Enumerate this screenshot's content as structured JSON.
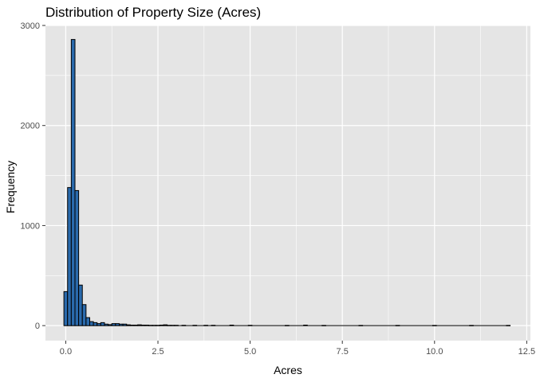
{
  "chart_data": {
    "type": "bar",
    "subtype": "histogram",
    "title": "Distribution of Property Size (Acres)",
    "xlabel": "Acres",
    "ylabel": "Frequency",
    "xlim": [
      -0.55,
      12.6
    ],
    "ylim": [
      -150,
      3000
    ],
    "x_ticks": [
      0,
      2.5,
      5,
      7.5,
      10,
      12.5
    ],
    "x_tick_labels": [
      "0.0",
      "2.5",
      "5.0",
      "7.5",
      "10.0",
      "12.5"
    ],
    "y_ticks": [
      0,
      1000,
      2000,
      3000
    ],
    "y_tick_labels": [
      "0",
      "1000",
      "2000",
      "3000"
    ],
    "bin_width": 0.1,
    "bin_centers": [
      0.0,
      0.1,
      0.2,
      0.3,
      0.4,
      0.5,
      0.6,
      0.7,
      0.8,
      0.9,
      1.0,
      1.1,
      1.2,
      1.3,
      1.4,
      1.5,
      1.6,
      1.7,
      1.8,
      1.9,
      2.0,
      2.1,
      2.2,
      2.3,
      2.4,
      2.5,
      2.6,
      2.7,
      2.8,
      2.9,
      3.0,
      3.2,
      3.5,
      3.8,
      4.0,
      4.5,
      5.0,
      6.0,
      6.5,
      7.0,
      8.0,
      9.0,
      10.0,
      11.0,
      12.0
    ],
    "frequencies": [
      340,
      1380,
      2860,
      1350,
      405,
      210,
      80,
      40,
      30,
      20,
      30,
      15,
      10,
      20,
      20,
      15,
      15,
      8,
      5,
      5,
      8,
      5,
      5,
      3,
      3,
      3,
      5,
      8,
      3,
      3,
      3,
      3,
      3,
      3,
      3,
      5,
      3,
      2,
      5,
      2,
      2,
      2,
      2,
      2,
      2
    ],
    "x_range_max": 12.05,
    "bar_fill": "#2a6aac",
    "bar_stroke": "#000000",
    "panel_background": "#e5e5e5",
    "grid": true,
    "grid_color": "#ffffff"
  }
}
